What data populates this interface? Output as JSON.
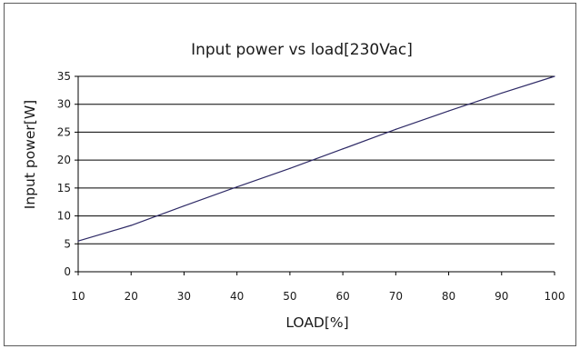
{
  "chart_data": {
    "type": "line",
    "title": "Input power vs load[230Vac]",
    "xlabel": "LOAD[%]",
    "ylabel": "Input power[W]",
    "xlim": [
      10,
      100
    ],
    "ylim": [
      0,
      35
    ],
    "xticks": [
      10,
      20,
      30,
      40,
      50,
      60,
      70,
      80,
      90,
      100
    ],
    "yticks": [
      0,
      5,
      10,
      15,
      20,
      25,
      30,
      35
    ],
    "grid": "horizontal",
    "legend": "none",
    "line_color": "#2e2a66",
    "series": [
      {
        "x": [
          10,
          20,
          30,
          40,
          50,
          60,
          70,
          80,
          90,
          100
        ],
        "y": [
          5.5,
          8.3,
          11.8,
          15.2,
          18.5,
          22.0,
          25.5,
          28.8,
          32.0,
          35.0
        ]
      }
    ]
  }
}
